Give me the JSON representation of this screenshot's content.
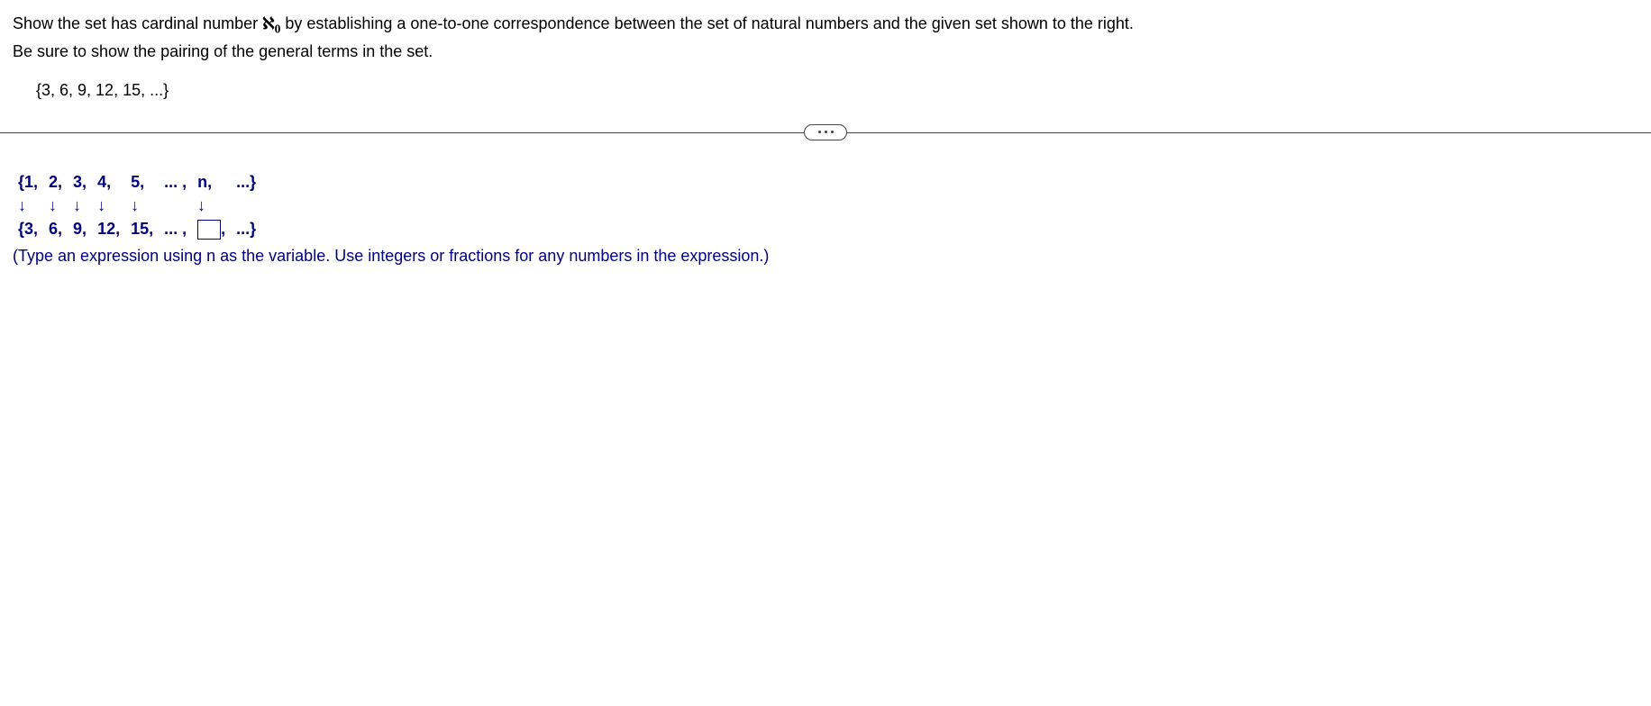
{
  "question": {
    "line1_pre": "Show the set has cardinal number ",
    "aleph": "ℵ",
    "aleph_sub": "0",
    "line1_post": " by establishing a one-to-one correspondence between the set of natural numbers and the given set shown to the right.",
    "line2": "Be sure to show the pairing of the general terms in the set.",
    "set": "{3, 6, 9, 12, 15, ...}"
  },
  "mapping": {
    "row1": {
      "c0": "{1,",
      "c1": "2,",
      "c2": "3,",
      "c3": "4,",
      "c4": "5,",
      "c5": "... ,",
      "c6": "n,",
      "c7": "...}"
    },
    "row_arrows": {
      "c0": "↓",
      "c1": "↓",
      "c2": "↓",
      "c3": "↓",
      "c4": "↓",
      "c5": "",
      "c6": "↓",
      "c7": ""
    },
    "row3": {
      "c0": "{3,",
      "c1": "6,",
      "c2": "9,",
      "c3": "12,",
      "c4": "15,",
      "c5": "... ,",
      "c6_post": ",",
      "c7": "...}"
    }
  },
  "hint": "(Type an expression using n as the variable. Use integers or fractions for any numbers in the expression.)",
  "colors": {
    "text": "#000000",
    "answer": "#00007f",
    "background": "#ffffff",
    "divider": "#444444"
  }
}
